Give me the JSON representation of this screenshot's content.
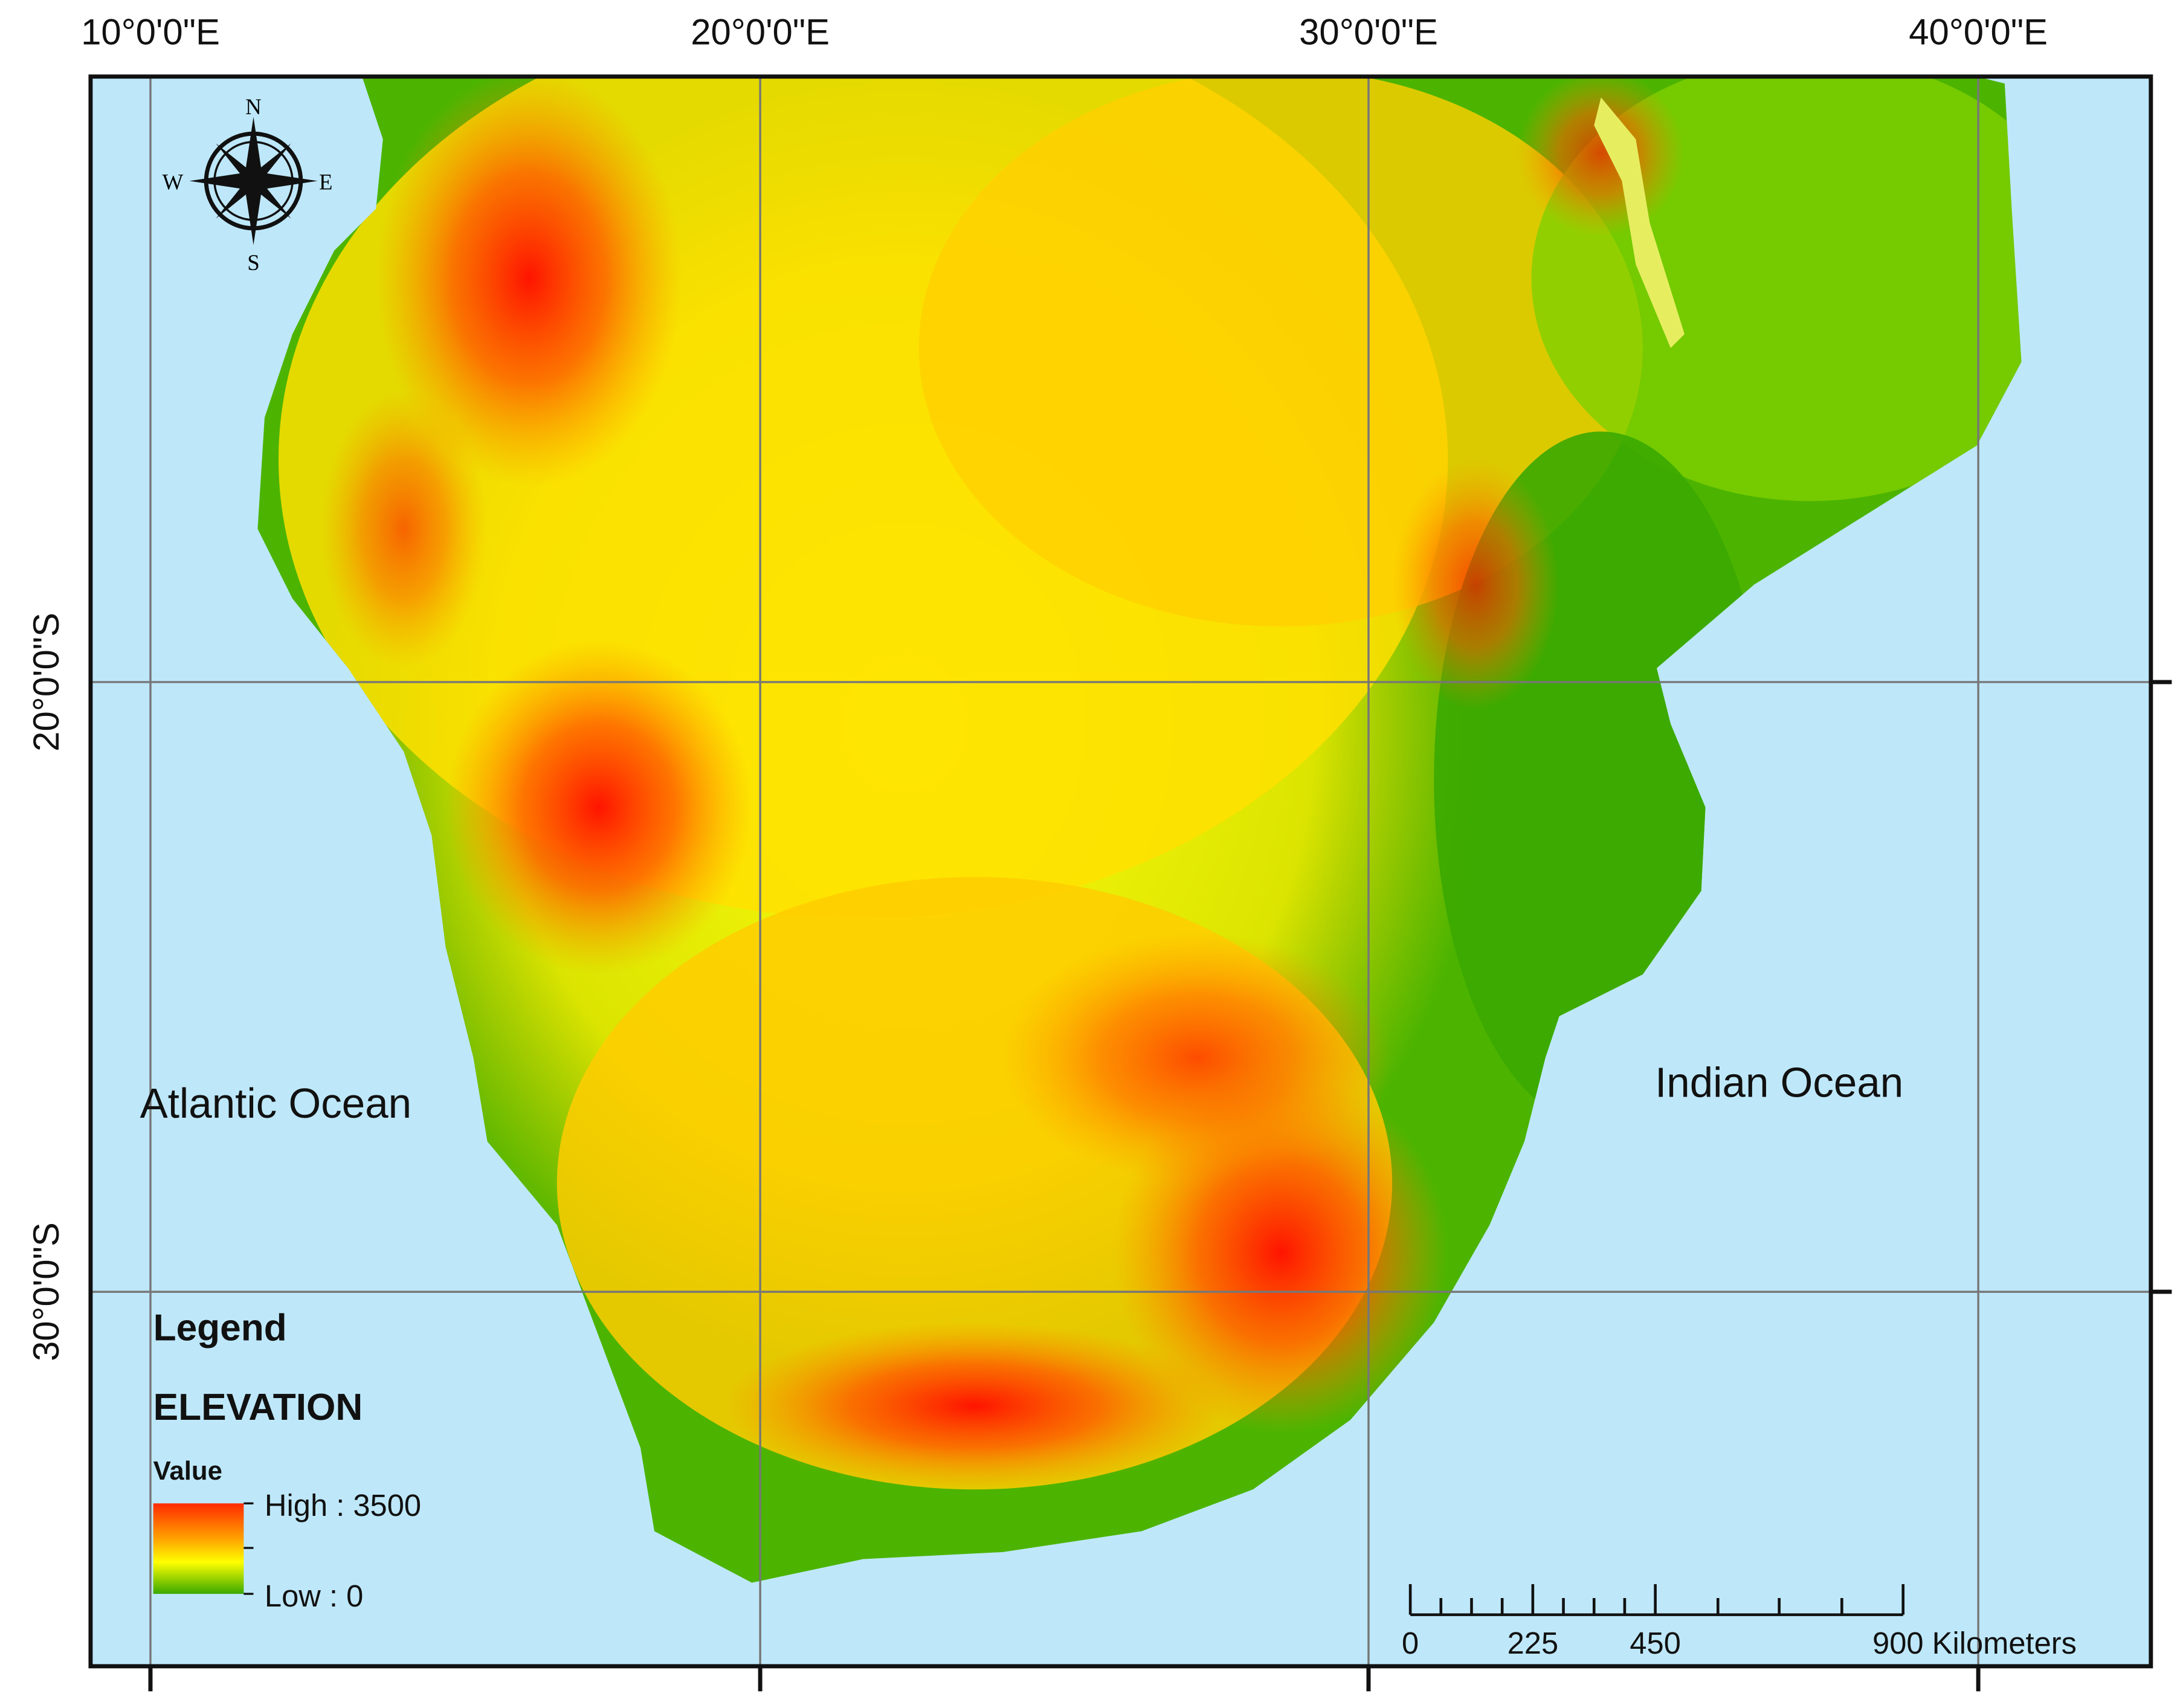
{
  "map": {
    "graticule": {
      "longitudes": [
        "10°0'0\"E",
        "20°0'0\"E",
        "30°0'0\"E",
        "40°0'0\"E"
      ],
      "latitudes": [
        "20°0'0\"S",
        "30°0'0\"S"
      ]
    },
    "labels": {
      "atlantic": "Atlantic Ocean",
      "indian": "Indian Ocean"
    },
    "compass": {
      "north": "N",
      "south": "S",
      "east": "E",
      "west": "W"
    },
    "legend": {
      "title": "Legend",
      "layer": "ELEVATION",
      "field": "Value",
      "high": "High : 3500",
      "low": "Low : 0"
    },
    "scale_bar": {
      "labels": [
        "0",
        "225",
        "450",
        "900 Kilometers"
      ]
    }
  }
}
